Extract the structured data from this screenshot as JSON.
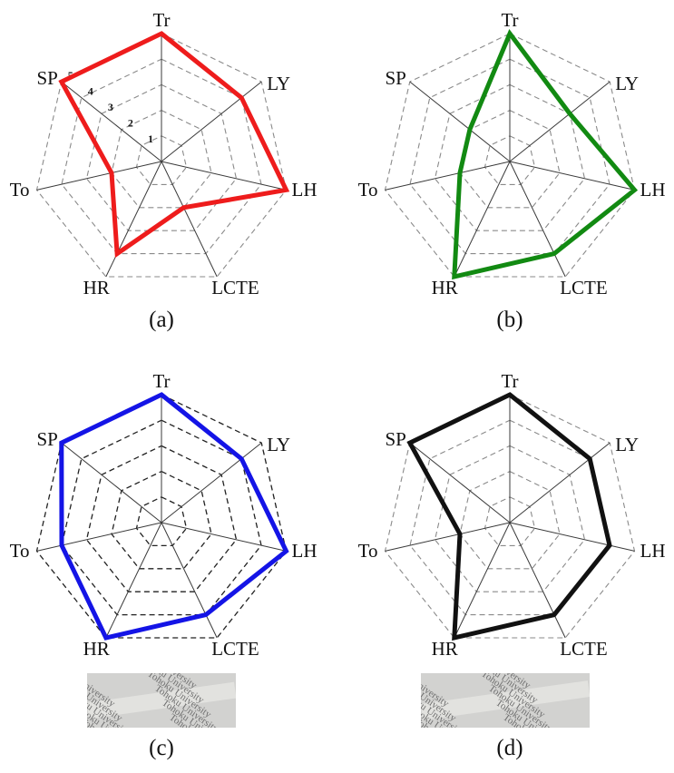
{
  "chart_data": [
    {
      "type": "radar",
      "axes": [
        "Tr",
        "LY",
        "LH",
        "LCTE",
        "HR",
        "To",
        "SP"
      ],
      "rmax": 5,
      "ticks": [
        "1",
        "2",
        "3",
        "4",
        "5"
      ],
      "series": [
        {
          "values": [
            5,
            4,
            5,
            2,
            4,
            2,
            5
          ],
          "color": "#ee1c1c"
        }
      ],
      "caption": "(a)",
      "show_tick_labels": true,
      "grid_style": "light-dashed",
      "photo": null
    },
    {
      "type": "radar",
      "axes": [
        "Tr",
        "LY",
        "LH",
        "LCTE",
        "HR",
        "To",
        "SP"
      ],
      "rmax": 5,
      "ticks": [
        "1",
        "2",
        "3",
        "4",
        "5"
      ],
      "series": [
        {
          "values": [
            5,
            3,
            5,
            4,
            5,
            2,
            2
          ],
          "color": "#128a12"
        }
      ],
      "caption": "(b)",
      "show_tick_labels": false,
      "grid_style": "light-dashed",
      "photo": null
    },
    {
      "type": "radar",
      "axes": [
        "Tr",
        "LY",
        "LH",
        "LCTE",
        "HR",
        "To",
        "SP"
      ],
      "rmax": 5,
      "ticks": [
        "1",
        "2",
        "3",
        "4",
        "5"
      ],
      "series": [
        {
          "values": [
            5,
            4,
            5,
            4,
            5,
            4,
            5
          ],
          "color": "#1414e6"
        }
      ],
      "caption": "(c)",
      "show_tick_labels": false,
      "grid_style": "dark-dashed",
      "photo": {
        "text": "Tohoku University"
      }
    },
    {
      "type": "radar",
      "axes": [
        "Tr",
        "LY",
        "LH",
        "LCTE",
        "HR",
        "To",
        "SP"
      ],
      "rmax": 5,
      "ticks": [
        "1",
        "2",
        "3",
        "4",
        "5"
      ],
      "series": [
        {
          "values": [
            5,
            4,
            4,
            4,
            5,
            2,
            5
          ],
          "color": "#111111"
        }
      ],
      "caption": "(d)",
      "show_tick_labels": false,
      "grid_style": "light-dashed",
      "photo": {
        "text": "Tohoku University"
      }
    }
  ]
}
